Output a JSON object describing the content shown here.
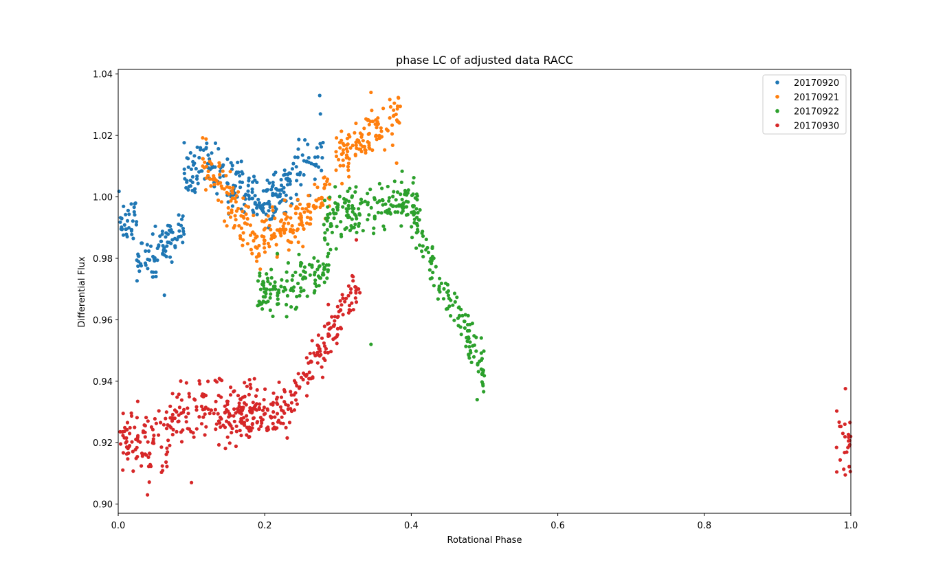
{
  "chart_data": {
    "type": "scatter",
    "title": "phase LC of adjusted data RACC",
    "xlabel": "Rotational Phase",
    "ylabel": "Differential Flux",
    "xlim": [
      0.0,
      1.0
    ],
    "ylim": [
      0.897,
      1.0415
    ],
    "x_ticks": [
      "0.0",
      "0.2",
      "0.4",
      "0.6",
      "0.8",
      "1.0"
    ],
    "y_ticks": [
      "0.90",
      "0.92",
      "0.94",
      "0.96",
      "0.98",
      "1.00",
      "1.02",
      "1.04"
    ],
    "grid": false,
    "legend_position": "top-right",
    "series": [
      {
        "name": "20170920",
        "color": "#1f77b4",
        "segments": [
          {
            "x": [
              0.0,
              0.025
            ],
            "y_trend": [
              0.993,
              0.993
            ],
            "spread": 0.004
          },
          {
            "x": [
              0.025,
              0.09
            ],
            "y_trend": [
              0.978,
              0.989
            ],
            "spread": 0.004
          },
          {
            "x": [
              0.09,
              0.13
            ],
            "y_trend": [
              1.007,
              1.012
            ],
            "spread": 0.004
          },
          {
            "x": [
              0.13,
              0.2
            ],
            "y_trend": [
              1.008,
              0.999
            ],
            "spread": 0.004
          },
          {
            "x": [
              0.2,
              0.28
            ],
            "y_trend": [
              0.999,
              1.013
            ],
            "spread": 0.004
          }
        ],
        "outliers": [
          [
            0.063,
            0.968
          ],
          [
            0.275,
            1.033
          ],
          [
            0.276,
            1.027
          ]
        ]
      },
      {
        "name": "20170921",
        "color": "#ff7f0e",
        "segments": [
          {
            "x": [
              0.115,
              0.19
            ],
            "y_trend": [
              1.012,
              0.984
            ],
            "spread": 0.004
          },
          {
            "x": [
              0.19,
              0.23
            ],
            "y_trend": [
              0.984,
              0.992
            ],
            "spread": 0.004
          },
          {
            "x": [
              0.23,
              0.29
            ],
            "y_trend": [
              0.988,
              1.002
            ],
            "spread": 0.004
          },
          {
            "x": [
              0.295,
              0.385
            ],
            "y_trend": [
              1.012,
              1.027
            ],
            "spread": 0.004
          }
        ],
        "outliers": [
          [
            0.345,
            1.034
          ],
          [
            0.38,
            1.011
          ]
        ]
      },
      {
        "name": "20170922",
        "color": "#2ca02c",
        "segments": [
          {
            "x": [
              0.19,
              0.29
            ],
            "y_trend": [
              0.967,
              0.978
            ],
            "spread": 0.004
          },
          {
            "x": [
              0.28,
              0.41
            ],
            "y_trend": [
              0.992,
              1.0
            ],
            "spread": 0.004
          },
          {
            "x": [
              0.4,
              0.5
            ],
            "y_trend": [
              0.993,
              0.942
            ],
            "spread": 0.004
          }
        ],
        "outliers": [
          [
            0.345,
            0.952
          ],
          [
            0.49,
            0.934
          ]
        ]
      },
      {
        "name": "20170930",
        "color": "#d62728",
        "segments": [
          {
            "x": [
              0.0,
              0.07
            ],
            "y_trend": [
              0.92,
              0.921
            ],
            "spread": 0.006
          },
          {
            "x": [
              0.07,
              0.19
            ],
            "y_trend": [
              0.929,
              0.932
            ],
            "spread": 0.005
          },
          {
            "x": [
              0.16,
              0.24
            ],
            "y_trend": [
              0.927,
              0.932
            ],
            "spread": 0.004
          },
          {
            "x": [
              0.24,
              0.33
            ],
            "y_trend": [
              0.936,
              0.972
            ],
            "spread": 0.004
          },
          {
            "x": [
              0.98,
              1.0
            ],
            "y_trend": [
              0.922,
              0.922
            ],
            "spread": 0.006
          }
        ],
        "outliers": [
          [
            0.04,
            0.903
          ],
          [
            0.1,
            0.907
          ],
          [
            0.325,
            0.986
          ]
        ]
      }
    ]
  }
}
